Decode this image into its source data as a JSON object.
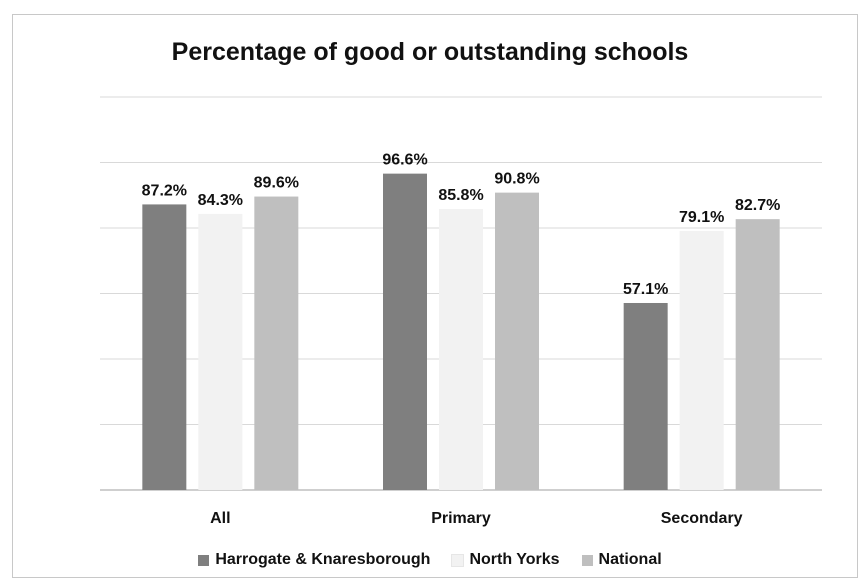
{
  "chart_data": {
    "type": "bar",
    "title": "Percentage of good or outstanding schools",
    "xlabel": "",
    "ylabel": "",
    "categories": [
      "All",
      "Primary",
      "Secondary"
    ],
    "series": [
      {
        "name": "Harrogate & Knaresborough",
        "values": [
          87.2,
          96.6,
          57.1
        ],
        "labels": [
          "87.2%",
          "96.6%",
          "57.1%"
        ],
        "color": "#7f7f7f"
      },
      {
        "name": "North Yorks",
        "values": [
          84.3,
          85.8,
          79.1
        ],
        "labels": [
          "84.3%",
          "85.8%",
          "79.1%"
        ],
        "color": "#f2f2f2"
      },
      {
        "name": "National",
        "values": [
          89.6,
          90.8,
          82.7
        ],
        "labels": [
          "89.6%",
          "90.8%",
          "82.7%"
        ],
        "color": "#bfbfbf"
      }
    ],
    "ylim": [
      0,
      120
    ],
    "gridlines": true,
    "legend_position": "bottom"
  }
}
